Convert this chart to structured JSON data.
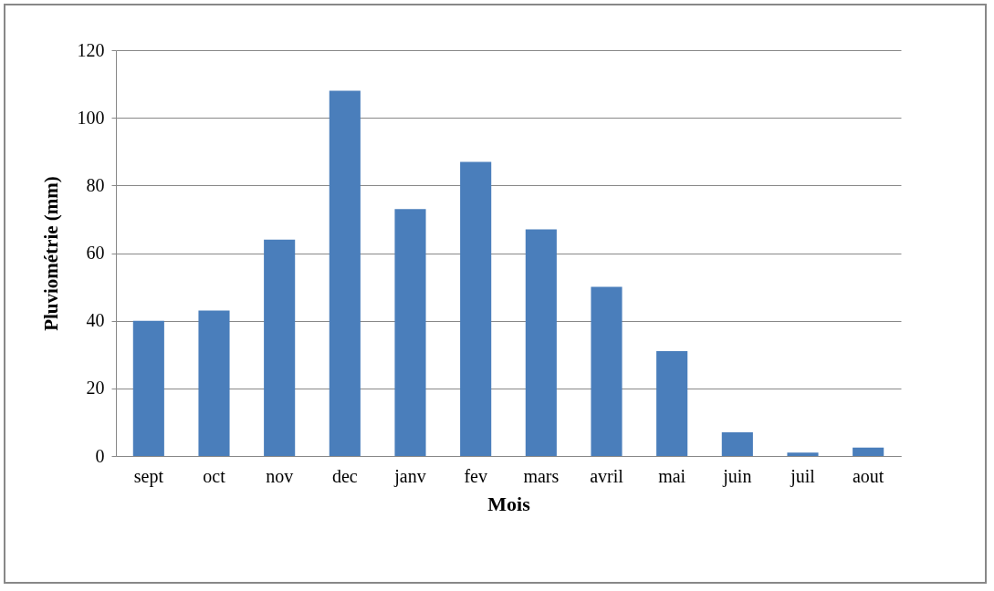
{
  "chart_data": {
    "type": "bar",
    "xlabel": "Mois",
    "ylabel": "Pluviométrie (mm)",
    "categories": [
      "sept",
      "oct",
      "nov",
      "dec",
      "janv",
      "fev",
      "mars",
      "avril",
      "mai",
      "juin",
      "juil",
      "aout"
    ],
    "series": [
      {
        "color": "#4a7ebb",
        "values": [
          40,
          43,
          64,
          108,
          73,
          87,
          67,
          50,
          31,
          7,
          1,
          2.5
        ]
      }
    ],
    "ylim": [
      0,
      120
    ],
    "yticks": [
      0,
      20,
      40,
      60,
      80,
      100,
      120
    ],
    "grid": "y"
  }
}
